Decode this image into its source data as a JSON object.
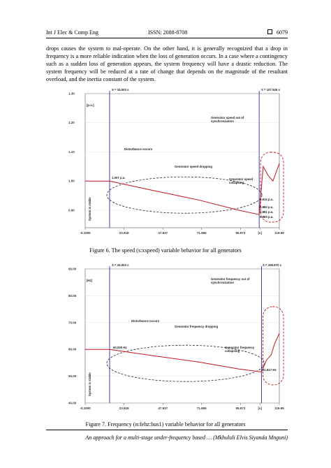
{
  "header": {
    "journal": "Int J Elec & Comp Eng",
    "issn": "ISSN: 2088-8708",
    "page": "6079"
  },
  "body": {
    "paragraph": "drops causes the system to mal-operate. On the other hand, it is generally recognized that a drop in frequency is a more reliable indication when the loss of generation occurs. In a case where a contingency such as a sudden loss of generation appears, the system frequency will have a drastic reduction. The system frequency will be reduced at a rate of change that depends on the magnitude of the resultant overload, and the inertia constant of the system."
  },
  "figures": [
    {
      "type": "line",
      "caption": "Figure 6. The speed (s:xspeed) variable behavior for all generators",
      "x": [
        -0.1,
        15,
        40,
        70,
        95,
        107.5,
        110,
        113,
        116,
        119.99
      ],
      "values": [
        1.0,
        1.0,
        0.97,
        0.935,
        0.9,
        0.885,
        1.05,
        1.02,
        1.0,
        1.06
      ],
      "color": "#c0141c",
      "xlim": [
        -0.1,
        119.99
      ],
      "ylim": [
        0.84,
        1.3
      ],
      "xticks": [
        {
          "value": -0.1,
          "label": "-0.1000"
        },
        23.918,
        47.937,
        71.955,
        95.973,
        {
          "value": 107.98,
          "label": "[s]"
        },
        119.99
      ],
      "yticks": [
        {
          "value": 0.9,
          "label": "0.90"
        },
        {
          "value": 1.0,
          "label": "1.00"
        },
        {
          "value": 1.1,
          "label": "1.10"
        },
        {
          "value": 1.2,
          "label": "1.20"
        },
        {
          "value": 1.3,
          "label": "1.30"
        }
      ],
      "cursors": [
        15.003,
        107.526
      ],
      "annotations": [
        "X = 15.003 s",
        "X = 107.526 s",
        "[p.u.]",
        "Generator speed out of synchronization",
        "Disturbance occurs",
        "Generator speed dropping",
        "Generator speed collapsing",
        "System is stable",
        "1.007 p.u.",
        "0.914 p.u.",
        "0.884 p.u.",
        "0.881 p.u.",
        "0.883 p.u."
      ]
    },
    {
      "type": "line",
      "caption": "Figure 7. Frequency (n:fehz:bus1) variable behavior for all generators",
      "x": [
        -0.1,
        15,
        40,
        70,
        95,
        108.97,
        112,
        115,
        117,
        119.99
      ],
      "values": [
        60,
        60,
        57.8,
        55.3,
        52.7,
        51.6,
        56,
        58,
        62,
        66
      ],
      "color": "#c0141c",
      "xlim": [
        -0.1,
        119.99
      ],
      "ylim": [
        40,
        90
      ],
      "xticks": [
        {
          "value": -0.1,
          "label": "-0.1000"
        },
        23.918,
        47.937,
        71.955,
        95.973,
        {
          "value": 107.98,
          "label": "[s]"
        },
        119.99
      ],
      "yticks": [
        {
          "value": 40,
          "label": "40.00"
        },
        {
          "value": 50,
          "label": "50.00"
        },
        {
          "value": 60,
          "label": "60.00"
        },
        {
          "value": 70,
          "label": "70.00"
        },
        {
          "value": 80,
          "label": "80.00"
        },
        {
          "value": 90,
          "label": "90.00"
        }
      ],
      "cursors": [
        15.003,
        108.97
      ],
      "annotations": [
        "X = 15.003 s",
        "X = 108.970 s",
        "[Hz]",
        "Generator frequency out of synchronization",
        "Disturbance occurs",
        "Generator frequency dropping",
        "Generator frequency collapsing",
        "System is stable",
        "60.000 Hz",
        "51.617 Hz"
      ]
    }
  ],
  "footer": {
    "text": "An approach for a multi-stage under-frequency based … (Mkhululi Elvis Siyanda Mnguni)"
  }
}
